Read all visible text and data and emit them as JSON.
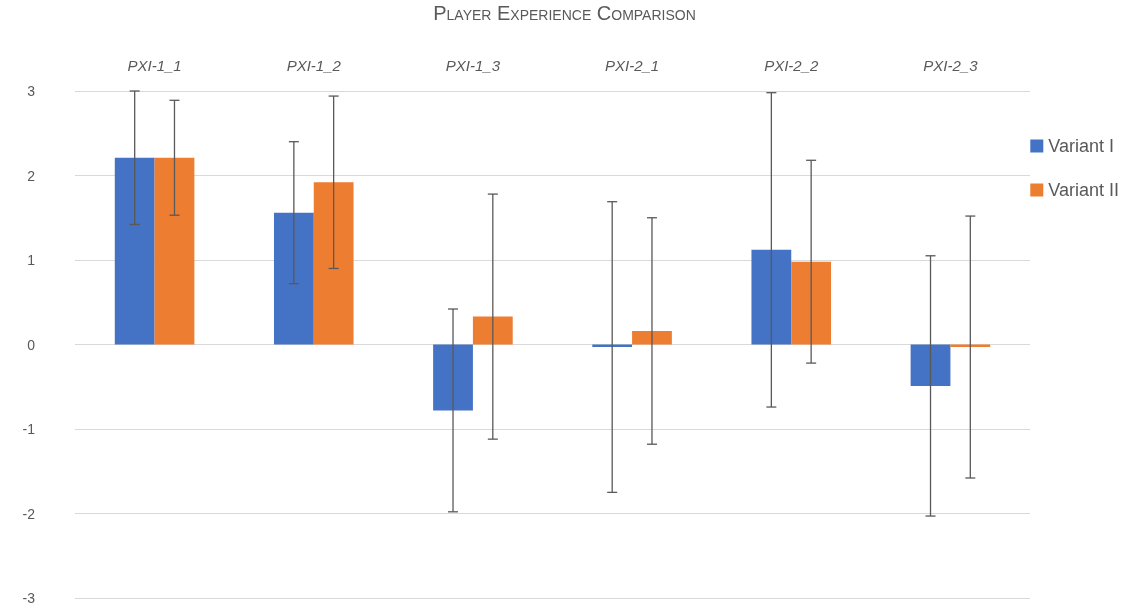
{
  "chart_data": {
    "type": "bar",
    "title": "Player Experience Comparison",
    "categories": [
      "PXI-1_1",
      "PXI-1_2",
      "PXI-1_3",
      "PXI-2_1",
      "PXI-2_2",
      "PXI-2_3"
    ],
    "series": [
      {
        "name": "Variant I",
        "color": "#4472c4",
        "values": [
          2.21,
          1.56,
          -0.78,
          -0.03,
          1.12,
          -0.49
        ],
        "errors": [
          0.79,
          0.84,
          1.2,
          1.72,
          1.86,
          1.54
        ]
      },
      {
        "name": "Variant II",
        "color": "#ed7d31",
        "values": [
          2.21,
          1.92,
          0.33,
          0.16,
          0.98,
          -0.03
        ],
        "errors": [
          0.68,
          1.02,
          1.45,
          1.34,
          1.2,
          1.55
        ]
      }
    ],
    "ylim": [
      -3,
      3
    ],
    "yticks": [
      -3,
      -2,
      -1,
      0,
      1,
      2,
      3
    ],
    "grid": "y",
    "legend": "right"
  }
}
